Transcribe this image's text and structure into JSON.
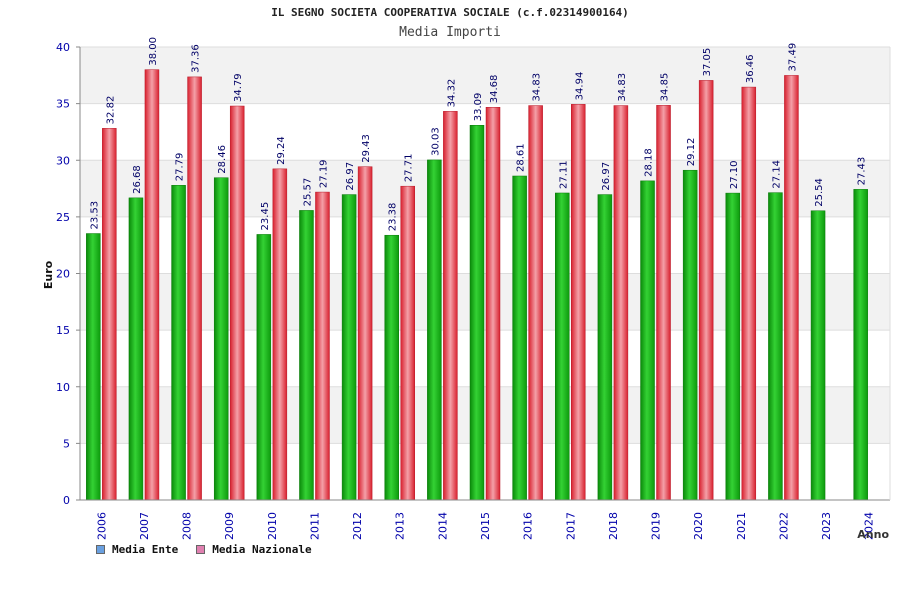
{
  "chart_data": {
    "type": "bar",
    "title": "IL SEGNO SOCIETA COOPERATIVA SOCIALE (c.f.02314900164)",
    "subtitle": "Media Importi",
    "xlabel": "Anno",
    "ylabel": "Euro",
    "ylim": [
      0,
      40
    ],
    "yticks": [
      0,
      5,
      10,
      15,
      20,
      25,
      30,
      35,
      40
    ],
    "grid": true,
    "legend_position": "bottom-left",
    "categories": [
      "2006",
      "2007",
      "2008",
      "2009",
      "2010",
      "2011",
      "2012",
      "2013",
      "2014",
      "2015",
      "2016",
      "2017",
      "2018",
      "2019",
      "2020",
      "2021",
      "2022",
      "2023",
      "2024"
    ],
    "series": [
      {
        "name": "Media Ente",
        "legend_color": "#6aa0e0",
        "bar_color": "#1fbf1f",
        "values": [
          23.53,
          26.68,
          27.79,
          28.46,
          23.45,
          25.57,
          26.97,
          23.38,
          30.03,
          33.09,
          28.61,
          27.11,
          26.97,
          28.18,
          29.12,
          27.1,
          27.14,
          25.54,
          27.43
        ],
        "labels": [
          "23.53",
          "26.68",
          "27.79",
          "28.46",
          "23.45",
          "25.57",
          "26.97",
          "23.38",
          "30.03",
          "33.09",
          "28.61",
          "27.11",
          "26.97",
          "28.18",
          "29.12",
          "27.10",
          "27.14",
          "25.54",
          "27.43"
        ]
      },
      {
        "name": "Media Nazionale",
        "legend_color": "#e080b0",
        "bar_color": "#e83a48",
        "values": [
          32.82,
          38.0,
          37.36,
          34.79,
          29.24,
          27.19,
          29.43,
          27.71,
          34.32,
          34.68,
          34.83,
          34.94,
          34.83,
          34.85,
          37.05,
          36.46,
          37.49,
          null,
          null
        ],
        "labels": [
          "32.82",
          "38.00",
          "37.36",
          "34.79",
          "29.24",
          "27.19",
          "29.43",
          "27.71",
          "34.32",
          "34.68",
          "34.83",
          "34.94",
          "34.83",
          "34.85",
          "37.05",
          "36.46",
          "37.49",
          null,
          null
        ]
      }
    ]
  }
}
